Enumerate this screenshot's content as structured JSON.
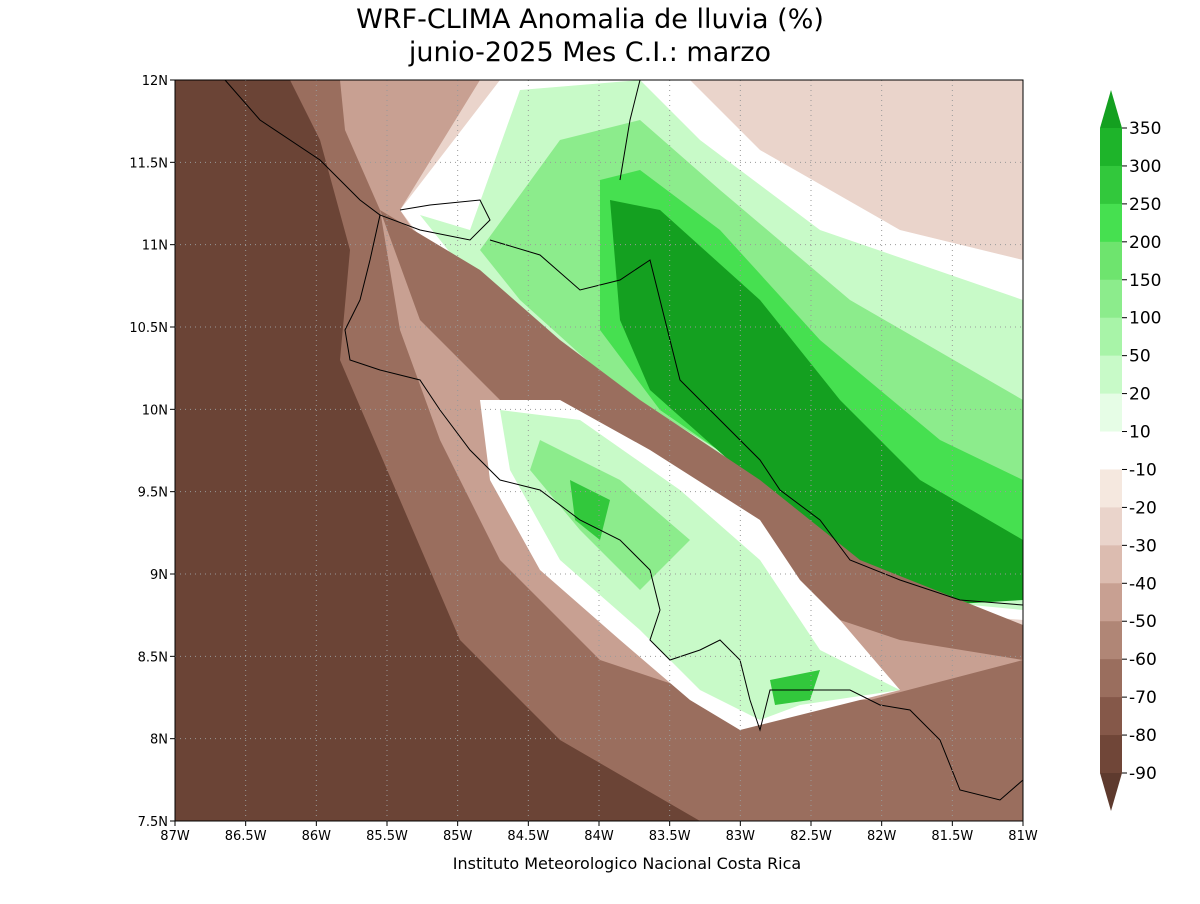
{
  "title": {
    "line1": "WRF-CLIMA Anomalia de lluvia (%)",
    "line2": "junio-2025 Mes C.I.: marzo"
  },
  "map": {
    "xlim": [
      -87,
      -81
    ],
    "ylim": [
      7.5,
      12
    ],
    "xticks": [
      {
        "value": -87,
        "label": "87W"
      },
      {
        "value": -86.5,
        "label": "86.5W"
      },
      {
        "value": -86,
        "label": "86W"
      },
      {
        "value": -85.5,
        "label": "85.5W"
      },
      {
        "value": -85,
        "label": "85W"
      },
      {
        "value": -84.5,
        "label": "84.5W"
      },
      {
        "value": -84,
        "label": "84W"
      },
      {
        "value": -83.5,
        "label": "83.5W"
      },
      {
        "value": -83,
        "label": "83W"
      },
      {
        "value": -82.5,
        "label": "82.5W"
      },
      {
        "value": -82,
        "label": "82W"
      },
      {
        "value": -81.5,
        "label": "81.5W"
      },
      {
        "value": -81,
        "label": "81W"
      }
    ],
    "yticks": [
      {
        "value": 7.5,
        "label": "7.5N"
      },
      {
        "value": 8,
        "label": "8N"
      },
      {
        "value": 8.5,
        "label": "8.5N"
      },
      {
        "value": 9,
        "label": "9N"
      },
      {
        "value": 9.5,
        "label": "9.5N"
      },
      {
        "value": 10,
        "label": "10N"
      },
      {
        "value": 10.5,
        "label": "10.5N"
      },
      {
        "value": 11,
        "label": "11N"
      },
      {
        "value": 11.5,
        "label": "11.5N"
      },
      {
        "value": 12,
        "label": "12N"
      }
    ]
  },
  "colorbar": {
    "levels": [
      350,
      300,
      250,
      200,
      150,
      100,
      50,
      20,
      10,
      -10,
      -20,
      -30,
      -40,
      -50,
      -60,
      -70,
      -80,
      -90
    ],
    "colors": [
      "#14a020",
      "#1eb42a",
      "#32c83c",
      "#46e050",
      "#6ee46e",
      "#8cec8c",
      "#a8f4a8",
      "#c8fac8",
      "#e6fde6",
      "#ffffff",
      "#f5e8df",
      "#ead4cb",
      "#dcbcb0",
      "#c8a092",
      "#b08676",
      "#9a6e5e",
      "#855849",
      "#704638",
      "#5e3a2e"
    ]
  },
  "footer": "Instituto Meteorologico Nacional Costa Rica"
}
